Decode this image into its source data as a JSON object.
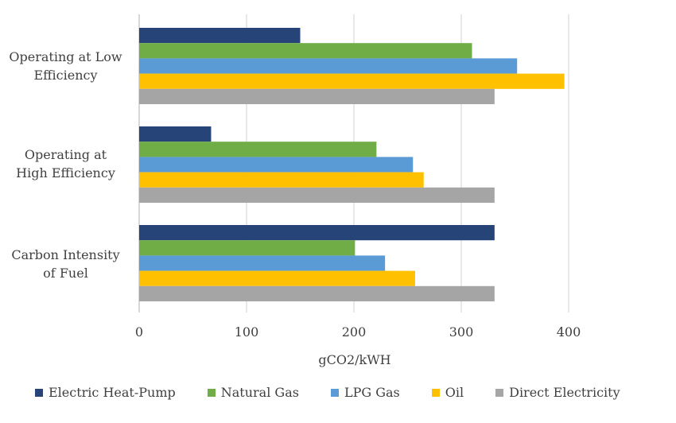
{
  "chart_data": {
    "type": "bar",
    "orientation": "horizontal",
    "categories": [
      "Operating at Low Efficiency",
      "Operating at High Efficiency",
      "Carbon Intensity of Fuel"
    ],
    "category_lines": [
      [
        "Operating at Low",
        "Efficiency"
      ],
      [
        "Operating at",
        "High Efficiency"
      ],
      [
        "Carbon Intensity",
        "of Fuel"
      ]
    ],
    "series": [
      {
        "name": "Electric Heat-Pump",
        "color": "#264478",
        "values": [
          150,
          67,
          331
        ]
      },
      {
        "name": "Natural Gas",
        "color": "#70ad47",
        "values": [
          310,
          221,
          201
        ]
      },
      {
        "name": "LPG Gas",
        "color": "#5b9bd5",
        "values": [
          352,
          255,
          229
        ]
      },
      {
        "name": "Oil",
        "color": "#ffc000",
        "values": [
          396,
          265,
          257
        ]
      },
      {
        "name": "Direct Electricity",
        "color": "#a5a5a5",
        "values": [
          331,
          331,
          331
        ]
      }
    ],
    "xlim": [
      0,
      400
    ],
    "xticks": [
      "0",
      "100",
      "200",
      "300",
      "400"
    ],
    "xlabel": "gCO2/kWH",
    "grid": true,
    "legend_position": "bottom"
  }
}
